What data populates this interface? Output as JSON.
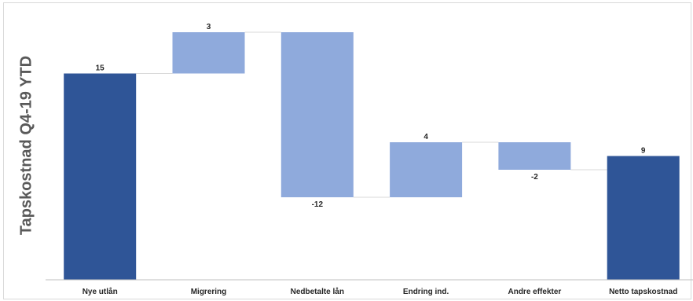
{
  "chart_data": {
    "type": "bar",
    "subtype": "waterfall",
    "title": "",
    "ylabel": "Tapskostnad Q4-19 YTD",
    "xlabel": "",
    "categories": [
      "Nye utlån",
      "Migrering",
      "Nedbetalte lån",
      "Endring ind.",
      "Andre effekter",
      "Netto tapskostnad"
    ],
    "values": [
      15,
      3,
      -12,
      4,
      -2,
      9
    ],
    "value_labels": [
      "15",
      "3",
      "-12",
      "4",
      "-2",
      "9"
    ],
    "kinds": [
      "total",
      "delta",
      "delta",
      "delta",
      "delta",
      "total"
    ],
    "ylim": [
      0,
      18
    ],
    "grid": false,
    "legend": "none",
    "colors": {
      "total": "#2F5597",
      "delta": "#8FAADC",
      "connector": "#D9D9D9",
      "axis": "#BFBFBF"
    }
  }
}
